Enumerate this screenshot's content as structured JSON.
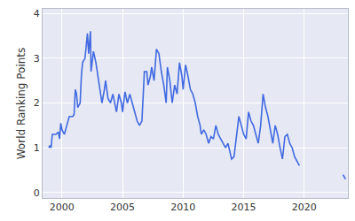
{
  "chart_data": {
    "type": "line",
    "y_label": "World Ranking Points",
    "color": "#4169e1",
    "grid": true,
    "xlim": [
      1998.4,
      2023.6
    ],
    "xticks": [
      2000,
      2005,
      2010,
      2015,
      2020
    ],
    "ylim": [
      -0.12,
      4.1
    ],
    "yticks": [
      0,
      1,
      2,
      3,
      4
    ],
    "x": [
      1998.9,
      1999.0,
      1999.1,
      1999.2,
      1999.5,
      1999.7,
      1999.8,
      1999.9,
      2000.0,
      2000.2,
      2000.4,
      2000.6,
      2000.9,
      2001.0,
      2001.1,
      2001.2,
      2001.3,
      2001.5,
      2001.6,
      2001.7,
      2001.9,
      2002.0,
      2002.1,
      2002.2,
      2002.35,
      2002.4,
      2002.5,
      2002.6,
      2002.8,
      2003.0,
      2003.2,
      2003.3,
      2003.5,
      2003.6,
      2003.8,
      2004.0,
      2004.2,
      2004.4,
      2004.5,
      2004.7,
      2004.9,
      2005.0,
      2005.2,
      2005.4,
      2005.6,
      2005.8,
      2006.0,
      2006.2,
      2006.4,
      2006.6,
      2006.8,
      2007.0,
      2007.1,
      2007.3,
      2007.4,
      2007.6,
      2007.8,
      2008.0,
      2008.2,
      2008.4,
      2008.6,
      2008.7,
      2008.9,
      2009.1,
      2009.3,
      2009.5,
      2009.7,
      2009.9,
      2010.0,
      2010.2,
      2010.4,
      2010.6,
      2010.8,
      2011.0,
      2011.2,
      2011.4,
      2011.5,
      2011.7,
      2011.9,
      2012.1,
      2012.3,
      2012.5,
      2012.7,
      2012.9,
      2013.1,
      2013.3,
      2013.5,
      2013.7,
      2013.9,
      2014.0,
      2014.2,
      2014.4,
      2014.6,
      2014.8,
      2015.0,
      2015.2,
      2015.4,
      2015.6,
      2015.8,
      2016.0,
      2016.2,
      2016.4,
      2016.6,
      2016.8,
      2017.0,
      2017.2,
      2017.4,
      2017.6,
      2017.8,
      2018.0,
      2018.2,
      2018.4,
      2018.6,
      2018.8,
      2019.0,
      2019.2,
      2019.4,
      2019.6,
      2021.0,
      2023.2,
      2023.4
    ],
    "values": [
      1.0,
      1.05,
      1.0,
      1.3,
      1.3,
      1.35,
      1.2,
      1.55,
      1.4,
      1.3,
      1.5,
      1.7,
      1.7,
      1.75,
      2.3,
      2.2,
      1.9,
      2.0,
      2.6,
      2.9,
      3.0,
      3.3,
      3.55,
      3.1,
      3.6,
      2.7,
      3.0,
      3.15,
      2.9,
      2.5,
      2.2,
      2.0,
      2.3,
      2.5,
      2.1,
      2.0,
      2.2,
      1.9,
      1.8,
      2.2,
      2.0,
      1.8,
      2.25,
      2.0,
      2.2,
      2.0,
      1.8,
      1.6,
      1.5,
      1.6,
      2.7,
      2.7,
      2.4,
      2.6,
      2.8,
      2.5,
      3.2,
      3.1,
      2.7,
      2.4,
      2.0,
      2.8,
      2.5,
      2.0,
      2.4,
      2.2,
      2.9,
      2.6,
      2.3,
      2.85,
      2.6,
      2.3,
      2.2,
      2.0,
      1.7,
      1.5,
      1.3,
      1.4,
      1.3,
      1.1,
      1.25,
      1.2,
      1.5,
      1.3,
      1.2,
      1.1,
      1.0,
      1.1,
      0.9,
      0.75,
      0.8,
      1.3,
      1.7,
      1.5,
      1.3,
      1.2,
      1.8,
      1.6,
      1.5,
      1.3,
      1.1,
      1.5,
      2.2,
      1.9,
      1.7,
      1.4,
      1.1,
      1.5,
      1.3,
      1.0,
      0.75,
      1.25,
      1.3,
      1.1,
      1.0,
      0.8,
      0.7,
      0.6,
      null,
      0.4,
      0.3
    ]
  }
}
